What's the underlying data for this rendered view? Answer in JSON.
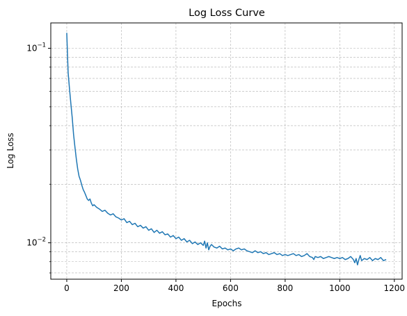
{
  "chart_data": {
    "type": "line",
    "title": "Log Loss Curve",
    "xlabel": "Epochs",
    "ylabel": "Log Loss",
    "yscale": "log",
    "xlim": [
      -58.5,
      1228.5
    ],
    "ylim": [
      0.0065,
      0.135
    ],
    "grid": true,
    "grid_style": "dashed",
    "line_color": "#1f77b4",
    "x_ticks": [
      0,
      200,
      400,
      600,
      800,
      1000,
      1200
    ],
    "x_tick_labels": [
      "0",
      "200",
      "400",
      "600",
      "800",
      "1000",
      "1200"
    ],
    "y_major_ticks": [
      0.01,
      0.1
    ],
    "y_major_tick_labels": [
      "10",
      "10"
    ],
    "y_major_tick_exponents": [
      "−2",
      "−1"
    ],
    "y_minor_ticks": [
      0.007,
      0.008,
      0.009,
      0.02,
      0.03,
      0.04,
      0.05,
      0.06,
      0.07,
      0.08,
      0.09
    ],
    "series": [
      {
        "values": [
          [
            0,
            0.12
          ],
          [
            5,
            0.075
          ],
          [
            10,
            0.062
          ],
          [
            15,
            0.052
          ],
          [
            20,
            0.044
          ],
          [
            25,
            0.036
          ],
          [
            30,
            0.031
          ],
          [
            35,
            0.027
          ],
          [
            40,
            0.024
          ],
          [
            45,
            0.022
          ],
          [
            50,
            0.021
          ],
          [
            55,
            0.0198
          ],
          [
            60,
            0.0188
          ],
          [
            65,
            0.0182
          ],
          [
            70,
            0.0175
          ],
          [
            75,
            0.0168
          ],
          [
            80,
            0.0165
          ],
          [
            85,
            0.0168
          ],
          [
            90,
            0.016
          ],
          [
            95,
            0.0155
          ],
          [
            100,
            0.0157
          ],
          [
            110,
            0.0152
          ],
          [
            120,
            0.0149
          ],
          [
            130,
            0.0145
          ],
          [
            140,
            0.0147
          ],
          [
            150,
            0.0142
          ],
          [
            160,
            0.0139
          ],
          [
            170,
            0.0141
          ],
          [
            180,
            0.0136
          ],
          [
            190,
            0.0134
          ],
          [
            200,
            0.0131
          ],
          [
            210,
            0.0133
          ],
          [
            220,
            0.0127
          ],
          [
            230,
            0.0129
          ],
          [
            240,
            0.0124
          ],
          [
            250,
            0.0126
          ],
          [
            260,
            0.0121
          ],
          [
            270,
            0.0123
          ],
          [
            280,
            0.0119
          ],
          [
            290,
            0.0121
          ],
          [
            300,
            0.0116
          ],
          [
            310,
            0.0118
          ],
          [
            320,
            0.0113
          ],
          [
            330,
            0.0116
          ],
          [
            340,
            0.0112
          ],
          [
            350,
            0.0114
          ],
          [
            360,
            0.011
          ],
          [
            370,
            0.0111
          ],
          [
            380,
            0.0107
          ],
          [
            390,
            0.0109
          ],
          [
            400,
            0.0105
          ],
          [
            410,
            0.0107
          ],
          [
            420,
            0.0103
          ],
          [
            430,
            0.0105
          ],
          [
            440,
            0.0101
          ],
          [
            450,
            0.0103
          ],
          [
            460,
            0.0099
          ],
          [
            470,
            0.0101
          ],
          [
            480,
            0.0098
          ],
          [
            490,
            0.01
          ],
          [
            500,
            0.0097
          ],
          [
            505,
            0.0102
          ],
          [
            510,
            0.0094
          ],
          [
            515,
            0.01
          ],
          [
            520,
            0.0092
          ],
          [
            525,
            0.0096
          ],
          [
            530,
            0.0098
          ],
          [
            540,
            0.0095
          ],
          [
            550,
            0.0094
          ],
          [
            560,
            0.0096
          ],
          [
            570,
            0.0093
          ],
          [
            580,
            0.0094
          ],
          [
            590,
            0.0092
          ],
          [
            600,
            0.0093
          ],
          [
            610,
            0.0091
          ],
          [
            620,
            0.0093
          ],
          [
            630,
            0.0094
          ],
          [
            640,
            0.0092
          ],
          [
            650,
            0.0093
          ],
          [
            660,
            0.0091
          ],
          [
            670,
            0.009
          ],
          [
            680,
            0.0089
          ],
          [
            690,
            0.0091
          ],
          [
            700,
            0.0089
          ],
          [
            710,
            0.009
          ],
          [
            720,
            0.0088
          ],
          [
            730,
            0.0089
          ],
          [
            740,
            0.0087
          ],
          [
            750,
            0.0088
          ],
          [
            760,
            0.0089
          ],
          [
            770,
            0.0087
          ],
          [
            780,
            0.0088
          ],
          [
            790,
            0.0086
          ],
          [
            800,
            0.0087
          ],
          [
            810,
            0.0086
          ],
          [
            820,
            0.0087
          ],
          [
            830,
            0.0088
          ],
          [
            840,
            0.0086
          ],
          [
            850,
            0.0087
          ],
          [
            860,
            0.0085
          ],
          [
            870,
            0.0086
          ],
          [
            880,
            0.0088
          ],
          [
            890,
            0.0085
          ],
          [
            900,
            0.0084
          ],
          [
            905,
            0.0082
          ],
          [
            910,
            0.0085
          ],
          [
            920,
            0.0084
          ],
          [
            930,
            0.0085
          ],
          [
            940,
            0.0083
          ],
          [
            950,
            0.0084
          ],
          [
            960,
            0.0085
          ],
          [
            970,
            0.0084
          ],
          [
            980,
            0.0083
          ],
          [
            990,
            0.0084
          ],
          [
            1000,
            0.0083
          ],
          [
            1010,
            0.0084
          ],
          [
            1020,
            0.0082
          ],
          [
            1030,
            0.0083
          ],
          [
            1040,
            0.0085
          ],
          [
            1050,
            0.0082
          ],
          [
            1055,
            0.0079
          ],
          [
            1060,
            0.0083
          ],
          [
            1065,
            0.0077
          ],
          [
            1070,
            0.0082
          ],
          [
            1075,
            0.0086
          ],
          [
            1080,
            0.0081
          ],
          [
            1090,
            0.0083
          ],
          [
            1100,
            0.0082
          ],
          [
            1110,
            0.0084
          ],
          [
            1120,
            0.0081
          ],
          [
            1130,
            0.0083
          ],
          [
            1140,
            0.0082
          ],
          [
            1150,
            0.0084
          ],
          [
            1160,
            0.0081
          ],
          [
            1170,
            0.0082
          ]
        ]
      }
    ]
  }
}
